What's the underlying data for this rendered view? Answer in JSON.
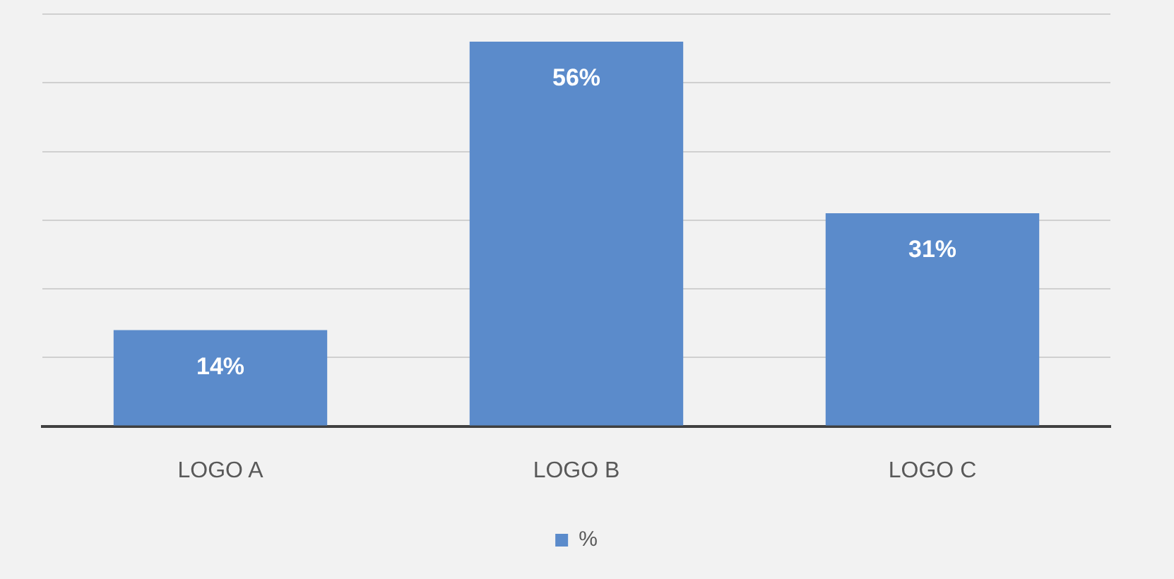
{
  "chart_data": {
    "type": "bar",
    "categories": [
      "LOGO A",
      "LOGO B",
      "LOGO C"
    ],
    "series": [
      {
        "name": "%",
        "color": "#5b8bcb",
        "values": [
          14,
          56,
          31
        ],
        "value_labels": [
          "14%",
          "56%",
          "31%"
        ]
      }
    ],
    "ylim": [
      0,
      60
    ],
    "yticks": [
      {
        "value": 0,
        "label": null
      },
      {
        "value": 10,
        "label": null
      },
      {
        "value": 20,
        "label": null
      },
      {
        "value": 30,
        "label": null
      },
      {
        "value": 40,
        "label": null
      },
      {
        "value": 50,
        "label": null
      },
      {
        "value": 60,
        "label": null
      }
    ],
    "grid": "y",
    "legend": "bottom",
    "tick_labels": "x"
  }
}
